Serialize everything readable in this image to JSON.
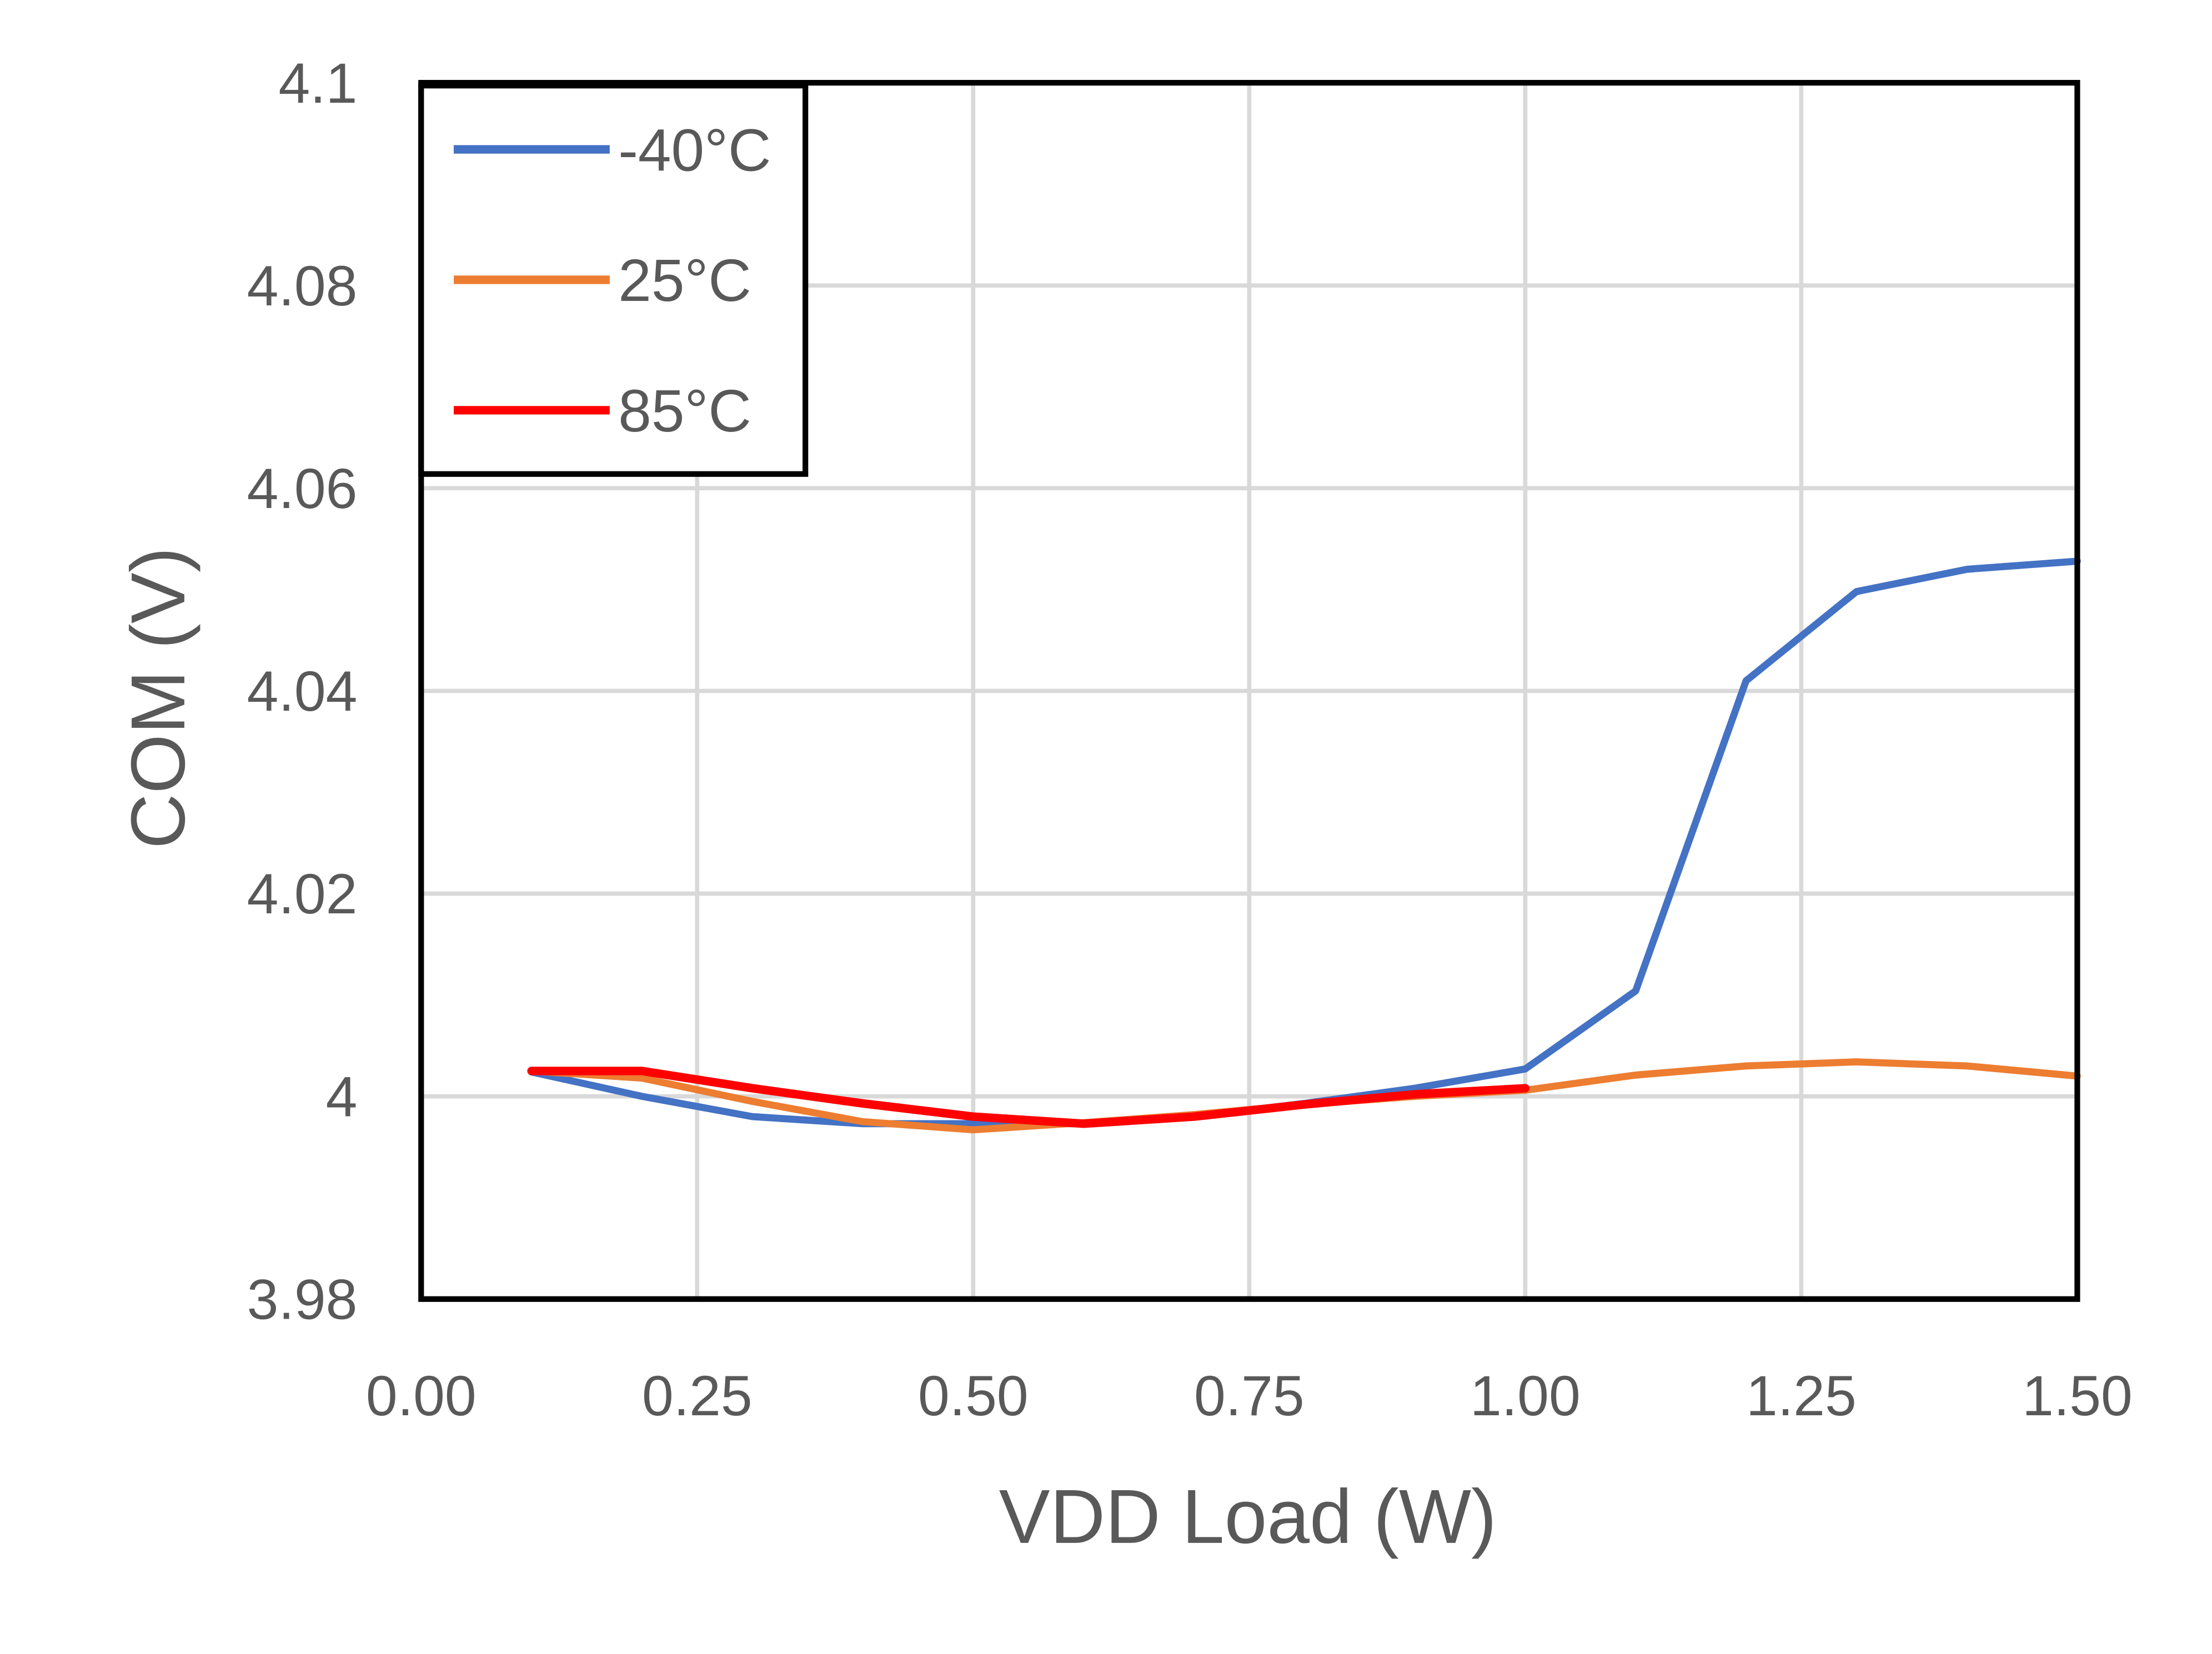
{
  "chart_data": {
    "type": "line",
    "title": "",
    "xlabel": "VDD Load (W)",
    "ylabel": "COM (V)",
    "xlim": [
      0,
      1.5
    ],
    "ylim": [
      3.98,
      4.1
    ],
    "grid": true,
    "legend_position": "top-left",
    "x_ticks": [
      "0.00",
      "0.25",
      "0.50",
      "0.75",
      "1.00",
      "1.25",
      "1.50"
    ],
    "x_tick_values": [
      0,
      0.25,
      0.5,
      0.75,
      1.0,
      1.25,
      1.5
    ],
    "y_ticks": [
      "3.98",
      "4",
      "4.02",
      "4.04",
      "4.06",
      "4.08",
      "4.1"
    ],
    "y_tick_values": [
      3.98,
      4.0,
      4.02,
      4.04,
      4.06,
      4.08,
      4.1
    ],
    "series": [
      {
        "name": "-40°C",
        "color": "#4472C4",
        "x": [
          0.1,
          0.2,
          0.3,
          0.4,
          0.5,
          0.6,
          0.7,
          0.8,
          0.9,
          1.0,
          1.1,
          1.2,
          1.3,
          1.4,
          1.5
        ],
        "values": [
          4.0024,
          4.0,
          3.998,
          3.9973,
          3.9973,
          3.9973,
          3.998,
          3.9993,
          4.0008,
          4.0027,
          4.0104,
          4.041,
          4.0498,
          4.052,
          4.0528
        ]
      },
      {
        "name": "25°C",
        "color": "#ED7D31",
        "x": [
          0.1,
          0.2,
          0.3,
          0.4,
          0.5,
          0.6,
          0.7,
          0.8,
          0.9,
          1.0,
          1.1,
          1.2,
          1.3,
          1.4,
          1.5
        ],
        "values": [
          4.0025,
          4.0018,
          3.9995,
          3.9975,
          3.9967,
          3.9974,
          3.9982,
          3.9992,
          4.0,
          4.0006,
          4.0021,
          4.003,
          4.0034,
          4.003,
          4.002
        ]
      },
      {
        "name": "85°C",
        "color": "#FF0000",
        "x": [
          0.1,
          0.2,
          0.3,
          0.4,
          0.5,
          0.6,
          0.7,
          0.8,
          0.9,
          1.0
        ],
        "values": [
          4.0025,
          4.0025,
          4.0008,
          3.9993,
          3.998,
          3.9973,
          3.998,
          3.9992,
          4.0002,
          4.0008
        ]
      }
    ]
  }
}
